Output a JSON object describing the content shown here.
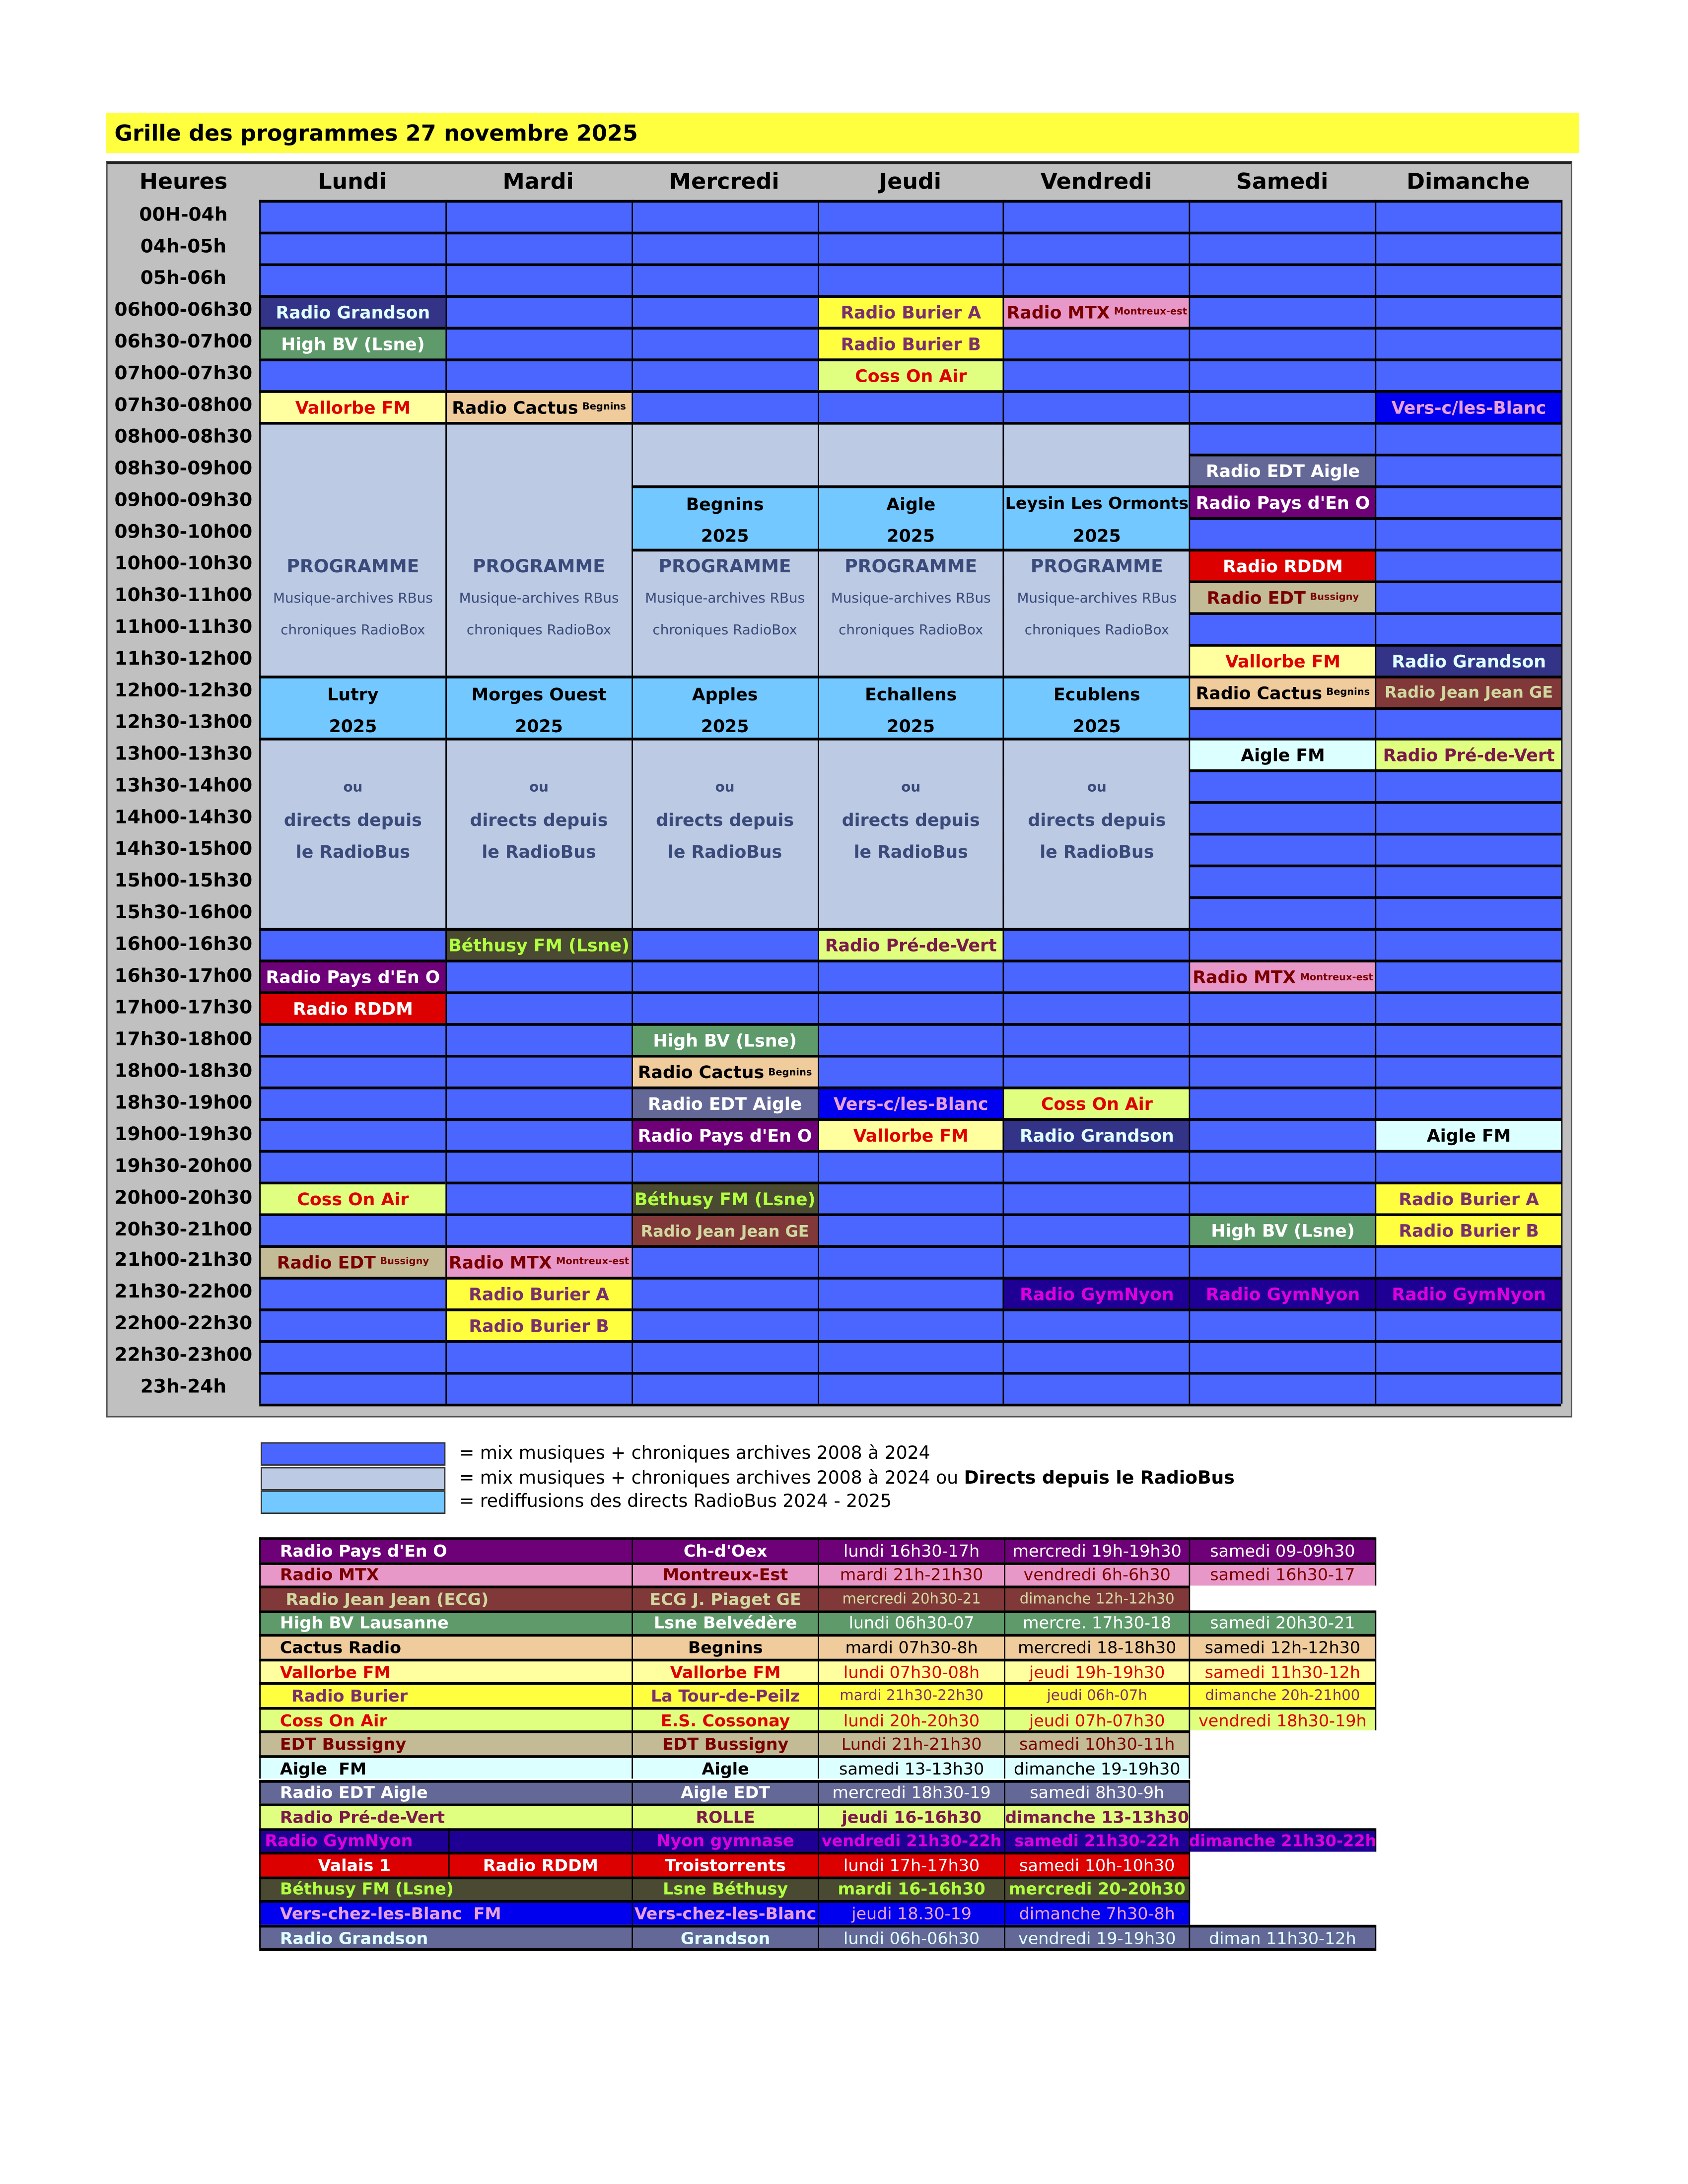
{
  "title": "Grille des programmes 27 novembre 2025",
  "hours_header": "Heures",
  "days": [
    "Lundi",
    "Mardi",
    "Mercredi",
    "Jeudi",
    "Vendredi",
    "Samedi",
    "Dimanche"
  ],
  "slots": [
    "00H-04h",
    "04h-05h",
    "05h-06h",
    "06h00-06h30",
    "06h30-07h00",
    "07h00-07h30",
    "07h30-08h00",
    "08h00-08h30",
    "08h30-09h00",
    "09h00-09h30",
    "09h30-10h00",
    "10h00-10h30",
    "10h30-11h00",
    "11h00-11h30",
    "11h30-12h00",
    "12h00-12h30",
    "12h30-13h00",
    "13h00-13h30",
    "13h30-14h00",
    "14h00-14h30",
    "14h30-15h00",
    "15h00-15h30",
    "15h30-16h00",
    "16h00-16h30",
    "16h30-17h00",
    "17h00-17h30",
    "17h30-18h00",
    "18h00-18h30",
    "18h30-19h00",
    "19h00-19h30",
    "19h30-20h00",
    "20h00-20h30",
    "20h30-21h00",
    "21h00-21h30",
    "21h30-22h00",
    "22h00-22h30",
    "22h30-23h00",
    "23h-24h"
  ],
  "colors": {
    "default": "#4a66ff",
    "archive": "#bccbe3",
    "rebroadcast": "#73c8ff",
    "header": "#c0c0c0",
    "title": "#ffff40"
  },
  "styles": {
    "grandson": {
      "bg": "#333388",
      "fg": "#ddffff"
    },
    "highbv": {
      "bg": "#5e9a6a",
      "fg": "#ffffff"
    },
    "vallorbe": {
      "bg": "#ffffa0",
      "fg": "#dd0000"
    },
    "cactus": {
      "bg": "#f0cc9c",
      "fg": "#000000"
    },
    "burier": {
      "bg": "#ffff40",
      "fg": "#7a2e6e"
    },
    "coss": {
      "bg": "#e0ff80",
      "fg": "#dd0000"
    },
    "mtx": {
      "bg": "#e898c8",
      "fg": "#7a0000"
    },
    "vers": {
      "bg": "#0000ee",
      "fg": "#e8a0d8"
    },
    "edtaigle": {
      "bg": "#646896",
      "fg": "#ffffff"
    },
    "paysdeno": {
      "bg": "#6e0078",
      "fg": "#ffffff"
    },
    "rddm": {
      "bg": "#dd0000",
      "fg": "#ffffff"
    },
    "edtbussigny": {
      "bg": "#c2bb96",
      "fg": "#7a0000"
    },
    "jeanjean": {
      "bg": "#803838",
      "fg": "#d0d8a0"
    },
    "aiglefm": {
      "bg": "#dcffff",
      "fg": "#000000"
    },
    "predevert": {
      "bg": "#e0ff80",
      "fg": "#7a1a4a"
    },
    "bethusy": {
      "bg": "#4a4a32",
      "fg": "#b0ff40"
    },
    "gymnyon": {
      "bg": "#1e0094",
      "fg": "#dd00dd"
    },
    "archive": {
      "bg": "#bccbe3",
      "fg": "#3a4a7a"
    },
    "rebroadcast": {
      "bg": "#73c8ff",
      "fg": "#000000"
    }
  },
  "events": [
    {
      "day": 0,
      "start": "06h00-06h30",
      "slots": 1,
      "style": "grandson",
      "text": "Radio Grandson"
    },
    {
      "day": 0,
      "start": "06h30-07h00",
      "slots": 1,
      "style": "highbv",
      "text": "High BV (Lsne)"
    },
    {
      "day": 0,
      "start": "07h30-08h00",
      "slots": 1,
      "style": "vallorbe",
      "text": "Vallorbe FM"
    },
    {
      "day": 0,
      "start": "08h00-08h30",
      "slots": 8,
      "style": "archive",
      "lines": [
        "",
        "",
        "",
        "",
        "PROGRAMME",
        "Musique-archives RBus",
        "chroniques RadioBox",
        ""
      ]
    },
    {
      "day": 0,
      "start": "12h00-12h30",
      "slots": 2,
      "style": "rebroadcast",
      "lines": [
        "Lutry",
        "2025"
      ]
    },
    {
      "day": 0,
      "start": "13h00-13h30",
      "slots": 6,
      "style": "archive",
      "lines": [
        "",
        "ou",
        "directs depuis",
        "le RadioBus",
        "",
        ""
      ]
    },
    {
      "day": 0,
      "start": "16h30-17h00",
      "slots": 1,
      "style": "paysdeno",
      "text": "Radio Pays d'En O"
    },
    {
      "day": 0,
      "start": "17h00-17h30",
      "slots": 1,
      "style": "rddm",
      "text": "Radio RDDM"
    },
    {
      "day": 0,
      "start": "20h00-20h30",
      "slots": 1,
      "style": "coss",
      "text": "Coss On Air"
    },
    {
      "day": 0,
      "start": "21h00-21h30",
      "slots": 1,
      "style": "edtbussigny",
      "text": "Radio EDT",
      "small": "Bussigny"
    },
    {
      "day": 1,
      "start": "07h30-08h00",
      "slots": 1,
      "style": "cactus",
      "text": "Radio Cactus",
      "small": "Begnins"
    },
    {
      "day": 1,
      "start": "08h00-08h30",
      "slots": 8,
      "style": "archive",
      "lines": [
        "",
        "",
        "",
        "",
        "PROGRAMME",
        "Musique-archives RBus",
        "chroniques RadioBox",
        ""
      ]
    },
    {
      "day": 1,
      "start": "12h00-12h30",
      "slots": 2,
      "style": "rebroadcast",
      "lines": [
        "Morges Ouest",
        "2025"
      ]
    },
    {
      "day": 1,
      "start": "13h00-13h30",
      "slots": 6,
      "style": "archive",
      "lines": [
        "",
        "ou",
        "directs depuis",
        "le RadioBus",
        "",
        ""
      ]
    },
    {
      "day": 1,
      "start": "16h00-16h30",
      "slots": 1,
      "style": "bethusy",
      "text": "Béthusy FM (Lsne)"
    },
    {
      "day": 1,
      "start": "21h00-21h30",
      "slots": 1,
      "style": "mtx",
      "text": "Radio MTX",
      "small": "Montreux-est"
    },
    {
      "day": 1,
      "start": "21h30-22h00",
      "slots": 1,
      "style": "burier",
      "text": "Radio Burier A"
    },
    {
      "day": 1,
      "start": "22h00-22h30",
      "slots": 1,
      "style": "burier",
      "text": "Radio Burier B"
    },
    {
      "day": 2,
      "start": "08h00-08h30",
      "slots": 2,
      "style": "archive",
      "lines": [
        "",
        ""
      ]
    },
    {
      "day": 2,
      "start": "09h00-09h30",
      "slots": 2,
      "style": "rebroadcast",
      "lines": [
        "Begnins",
        "2025"
      ]
    },
    {
      "day": 2,
      "start": "10h00-10h30",
      "slots": 4,
      "style": "archive",
      "lines": [
        "PROGRAMME",
        "Musique-archives RBus",
        "chroniques RadioBox",
        ""
      ]
    },
    {
      "day": 2,
      "start": "12h00-12h30",
      "slots": 2,
      "style": "rebroadcast",
      "lines": [
        "Apples",
        "2025"
      ]
    },
    {
      "day": 2,
      "start": "13h00-13h30",
      "slots": 6,
      "style": "archive",
      "lines": [
        "",
        "ou",
        "directs depuis",
        "le RadioBus",
        "",
        ""
      ]
    },
    {
      "day": 2,
      "start": "17h30-18h00",
      "slots": 1,
      "style": "highbv",
      "text": "High BV (Lsne)"
    },
    {
      "day": 2,
      "start": "18h00-18h30",
      "slots": 1,
      "style": "cactus",
      "text": "Radio Cactus",
      "small": "Begnins"
    },
    {
      "day": 2,
      "start": "18h30-19h00",
      "slots": 1,
      "style": "edtaigle",
      "text": "Radio EDT Aigle"
    },
    {
      "day": 2,
      "start": "19h00-19h30",
      "slots": 1,
      "style": "paysdeno",
      "text": "Radio Pays d'En O"
    },
    {
      "day": 2,
      "start": "20h00-20h30",
      "slots": 1,
      "style": "bethusy",
      "text": "Béthusy FM (Lsne)"
    },
    {
      "day": 2,
      "start": "20h30-21h00",
      "slots": 1,
      "style": "jeanjean",
      "text": "Radio Jean Jean GE"
    },
    {
      "day": 3,
      "start": "06h00-06h30",
      "slots": 1,
      "style": "burier",
      "text": "Radio Burier A"
    },
    {
      "day": 3,
      "start": "06h30-07h00",
      "slots": 1,
      "style": "burier",
      "text": "Radio Burier B"
    },
    {
      "day": 3,
      "start": "07h00-07h30",
      "slots": 1,
      "style": "coss",
      "text": "Coss On Air"
    },
    {
      "day": 3,
      "start": "08h00-08h30",
      "slots": 2,
      "style": "archive",
      "lines": [
        "",
        ""
      ]
    },
    {
      "day": 3,
      "start": "09h00-09h30",
      "slots": 2,
      "style": "rebroadcast",
      "lines": [
        "Aigle",
        "2025"
      ]
    },
    {
      "day": 3,
      "start": "10h00-10h30",
      "slots": 4,
      "style": "archive",
      "lines": [
        "PROGRAMME",
        "Musique-archives RBus",
        "chroniques RadioBox",
        ""
      ]
    },
    {
      "day": 3,
      "start": "12h00-12h30",
      "slots": 2,
      "style": "rebroadcast",
      "lines": [
        "Echallens",
        "2025"
      ]
    },
    {
      "day": 3,
      "start": "13h00-13h30",
      "slots": 6,
      "style": "archive",
      "lines": [
        "",
        "ou",
        "directs depuis",
        "le RadioBus",
        "",
        ""
      ]
    },
    {
      "day": 3,
      "start": "16h00-16h30",
      "slots": 1,
      "style": "predevert",
      "text": "Radio Pré-de-Vert"
    },
    {
      "day": 3,
      "start": "18h30-19h00",
      "slots": 1,
      "style": "vers",
      "text": "Vers-c/les-Blanc"
    },
    {
      "day": 3,
      "start": "19h00-19h30",
      "slots": 1,
      "style": "vallorbe",
      "text": "Vallorbe FM"
    },
    {
      "day": 4,
      "start": "06h00-06h30",
      "slots": 1,
      "style": "mtx",
      "text": "Radio MTX",
      "small": "Montreux-est"
    },
    {
      "day": 4,
      "start": "08h00-08h30",
      "slots": 2,
      "style": "archive",
      "lines": [
        "",
        ""
      ]
    },
    {
      "day": 4,
      "start": "09h00-09h30",
      "slots": 2,
      "style": "rebroadcast",
      "lines": [
        "Leysin Les Ormonts",
        "2025"
      ]
    },
    {
      "day": 4,
      "start": "10h00-10h30",
      "slots": 4,
      "style": "archive",
      "lines": [
        "PROGRAMME",
        "Musique-archives RBus",
        "chroniques RadioBox",
        ""
      ]
    },
    {
      "day": 4,
      "start": "12h00-12h30",
      "slots": 2,
      "style": "rebroadcast",
      "lines": [
        "Ecublens",
        "2025"
      ]
    },
    {
      "day": 4,
      "start": "13h00-13h30",
      "slots": 6,
      "style": "archive",
      "lines": [
        "",
        "ou",
        "directs depuis",
        "le RadioBus",
        "",
        ""
      ]
    },
    {
      "day": 4,
      "start": "18h30-19h00",
      "slots": 1,
      "style": "coss",
      "text": "Coss On Air"
    },
    {
      "day": 4,
      "start": "19h00-19h30",
      "slots": 1,
      "style": "grandson",
      "text": "Radio Grandson"
    },
    {
      "day": 4,
      "start": "21h30-22h00",
      "slots": 1,
      "style": "gymnyon",
      "text": "Radio GymNyon"
    },
    {
      "day": 5,
      "start": "08h30-09h00",
      "slots": 1,
      "style": "edtaigle",
      "text": "Radio EDT Aigle"
    },
    {
      "day": 5,
      "start": "09h00-09h30",
      "slots": 1,
      "style": "paysdeno",
      "text": "Radio Pays d'En O"
    },
    {
      "day": 5,
      "start": "10h00-10h30",
      "slots": 1,
      "style": "rddm",
      "text": "Radio RDDM"
    },
    {
      "day": 5,
      "start": "10h30-11h00",
      "slots": 1,
      "style": "edtbussigny",
      "text": "Radio EDT",
      "small": "Bussigny"
    },
    {
      "day": 5,
      "start": "11h30-12h00",
      "slots": 1,
      "style": "vallorbe",
      "text": "Vallorbe FM"
    },
    {
      "day": 5,
      "start": "12h00-12h30",
      "slots": 1,
      "style": "cactus",
      "text": "Radio Cactus",
      "small": "Begnins"
    },
    {
      "day": 5,
      "start": "13h00-13h30",
      "slots": 1,
      "style": "aiglefm",
      "text": "Aigle  FM"
    },
    {
      "day": 5,
      "start": "16h30-17h00",
      "slots": 1,
      "style": "mtx",
      "text": "Radio MTX",
      "small": "Montreux-est"
    },
    {
      "day": 5,
      "start": "20h30-21h00",
      "slots": 1,
      "style": "highbv",
      "text": "High BV (Lsne)"
    },
    {
      "day": 5,
      "start": "21h30-22h00",
      "slots": 1,
      "style": "gymnyon",
      "text": "Radio GymNyon"
    },
    {
      "day": 6,
      "start": "07h30-08h00",
      "slots": 1,
      "style": "vers",
      "text": "Vers-c/les-Blanc"
    },
    {
      "day": 6,
      "start": "11h30-12h00",
      "slots": 1,
      "style": "grandson",
      "text": "Radio Grandson"
    },
    {
      "day": 6,
      "start": "12h00-12h30",
      "slots": 1,
      "style": "jeanjean",
      "text": "Radio Jean Jean GE"
    },
    {
      "day": 6,
      "start": "13h00-13h30",
      "slots": 1,
      "style": "predevert",
      "text": "Radio Pré-de-Vert"
    },
    {
      "day": 6,
      "start": "19h00-19h30",
      "slots": 1,
      "style": "aiglefm",
      "text": "Aigle  FM"
    },
    {
      "day": 6,
      "start": "20h00-20h30",
      "slots": 1,
      "style": "burier",
      "text": "Radio Burier A"
    },
    {
      "day": 6,
      "start": "20h30-21h00",
      "slots": 1,
      "style": "burier",
      "text": "Radio Burier B"
    },
    {
      "day": 6,
      "start": "21h30-22h00",
      "slots": 1,
      "style": "gymnyon",
      "text": "Radio GymNyon"
    }
  ],
  "legend": [
    {
      "color": "#4a66ff",
      "text": "= mix musiques + chroniques archives 2008 à 2024",
      "bold": ""
    },
    {
      "color": "#bccbe3",
      "text": "= mix musiques + chroniques archives 2008 à 2024 ou ",
      "bold": "Directs depuis le RadioBus"
    },
    {
      "color": "#73c8ff",
      "text": "= rediffusions des directs RadioBus 2024 - 2025",
      "bold": ""
    }
  ],
  "stations": [
    {
      "style": "paysdeno",
      "name": "Radio Pays d'En O",
      "place": "Ch-d'Oex",
      "times": [
        "lundi 16h30-17h",
        "mercredi 19h-19h30",
        "samedi 09-09h30"
      ]
    },
    {
      "style": "mtx",
      "name": "Radio MTX",
      "place": "Montreux-Est",
      "times": [
        "mardi 21h-21h30",
        "vendredi 6h-6h30",
        "samedi 16h30-17"
      ]
    },
    {
      "style": "jeanjean",
      "name": " Radio Jean Jean (ECG)",
      "place": "ECG J. Piaget GE",
      "times": [
        "mercredi 20h30-21",
        "dimanche 12h-12h30"
      ]
    },
    {
      "style": "highbv",
      "name": "High BV Lausanne",
      "place": "Lsne Belvédère",
      "times": [
        "lundi 06h30-07",
        "mercre. 17h30-18",
        "samedi 20h30-21"
      ]
    },
    {
      "style": "cactus",
      "name": "Cactus Radio",
      "place": "Begnins",
      "times": [
        "mardi 07h30-8h",
        "mercredi 18-18h30",
        "samedi 12h-12h30"
      ]
    },
    {
      "style": "vallorbe",
      "name": "Vallorbe FM",
      "place": "Vallorbe FM",
      "times": [
        "lundi 07h30-08h",
        "jeudi 19h-19h30",
        "samedi 11h30-12h"
      ]
    },
    {
      "style": "burier",
      "name": "  Radio Burier",
      "place": "La Tour-de-Peilz",
      "times": [
        "mardi 21h30-22h30",
        "jeudi 06h-07h",
        "dimanche 20h-21h00"
      ]
    },
    {
      "style": "coss",
      "name": "Coss On Air",
      "place": "E.S. Cossonay",
      "times": [
        "lundi 20h-20h30",
        "jeudi 07h-07h30",
        "vendredi 18h30-19h"
      ]
    },
    {
      "style": "edtbussigny",
      "name": "EDT Bussigny",
      "place": "EDT Bussigny",
      "times": [
        "Lundi 21h-21h30",
        "samedi 10h30-11h"
      ]
    },
    {
      "style": "aiglefm",
      "name": "Aigle  FM",
      "place": "Aigle",
      "times": [
        "samedi 13-13h30",
        "dimanche 19-19h30"
      ]
    },
    {
      "style": "edtaigle",
      "name": "Radio EDT Aigle",
      "place": "Aigle EDT",
      "times": [
        "mercredi 18h30-19",
        "samedi 8h30-9h"
      ]
    },
    {
      "style": "predevert",
      "name": "Radio Pré-de-Vert",
      "place": "ROLLE",
      "times": [
        "jeudi 16-16h30",
        "dimanche 13-13h30"
      ]
    },
    {
      "style": "gymnyon",
      "name": "Radio GymNyon",
      "name2": "",
      "place": "Nyon gymnase",
      "times": [
        "vendredi 21h30-22h",
        "samedi 21h30-22h",
        "dimanche 21h30-22h"
      ]
    },
    {
      "style": "rddm",
      "name": "Valais 1",
      "name2": "Radio RDDM",
      "place": "Troistorrents",
      "times": [
        "lundi 17h-17h30",
        "samedi 10h-10h30"
      ]
    },
    {
      "style": "bethusy",
      "name": "Béthusy FM (Lsne)",
      "place": "Lsne Béthusy",
      "times": [
        "mardi 16-16h30",
        "mercredi 20-20h30"
      ]
    },
    {
      "style": "vers",
      "name": "Vers-chez-les-Blanc  FM",
      "place": "Vers-chez-les-Blanc",
      "times": [
        "jeudi 18.30-19",
        "dimanche 7h30-8h"
      ]
    },
    {
      "style": "edtaigle",
      "name": "Radio Grandson",
      "place": "Grandson",
      "times": [
        "lundi 06h-06h30",
        "vendredi 19-19h30",
        "diman 11h30-12h"
      ],
      "fg": "#ddffff"
    }
  ]
}
